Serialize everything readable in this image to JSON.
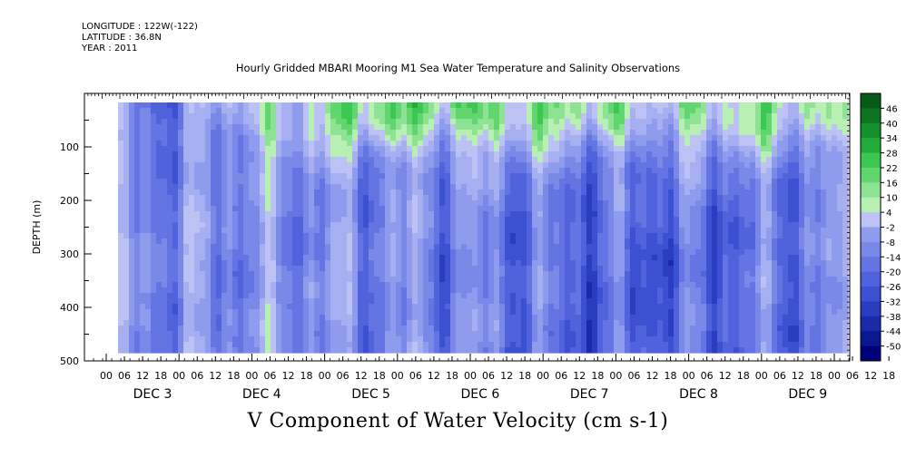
{
  "header": {
    "longitude": "LONGITUDE : 122W(-122)",
    "latitude": "LATITUDE : 36.8N",
    "year": "YEAR : 2011"
  },
  "title": "Hourly Gridded MBARI Mooring M1 Sea Water Temperature and Salinity Observations",
  "footer": "V Component of Water Velocity (cm s-1)",
  "chart_data": {
    "type": "heatmap",
    "title": "Hourly Gridded MBARI Mooring M1 Sea Water Temperature and Salinity Observations",
    "ylabel": "DEPTH (m)",
    "xlabel": "",
    "ylim": [
      500,
      0
    ],
    "yticks": [
      100,
      200,
      300,
      400,
      500
    ],
    "xticks_hours": [
      "00",
      "06",
      "12",
      "18",
      "00",
      "06",
      "12",
      "18",
      "00",
      "06",
      "12",
      "18",
      "00",
      "06",
      "12",
      "18",
      "00",
      "06",
      "12",
      "18",
      "00",
      "06",
      "12",
      "18",
      "00",
      "06",
      "12",
      "18",
      "00",
      "06",
      "12",
      "18",
      "00",
      "06",
      "12",
      "18",
      "00",
      "06",
      "12",
      "18",
      "00",
      "06",
      "12",
      "18"
    ],
    "x_day_labels": [
      "DEC  3",
      "DEC  4",
      "DEC  5",
      "DEC  6",
      "DEC  7",
      "DEC  8",
      "DEC  9"
    ],
    "colorbar_levels": [
      46,
      40,
      34,
      28,
      22,
      16,
      10,
      4,
      -2,
      -8,
      -14,
      -20,
      -26,
      -32,
      -38,
      -44,
      -50
    ],
    "colors": {
      "strong_pos": "#0a4a1a",
      "pos": "#2fb84a",
      "light_pos": "#9be6a2",
      "light_neg": "#a8acee",
      "neg": "#5560dd",
      "strong_neg": "#10187a"
    },
    "grid": false,
    "colorbar_position": "right"
  }
}
